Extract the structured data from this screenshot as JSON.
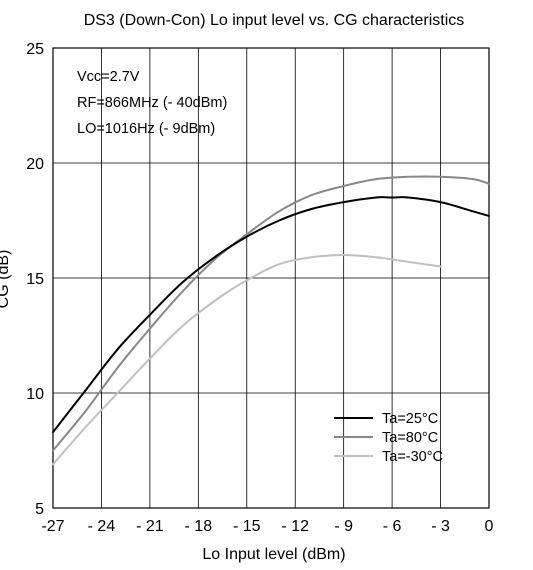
{
  "chart_data": {
    "type": "line",
    "title": "DS3 (Down-Con) Lo input level vs. CG characteristics",
    "xlabel": "Lo Input level  (dBm)",
    "ylabel": "CG (dB)",
    "xlim": [
      -27,
      0
    ],
    "ylim": [
      5,
      25
    ],
    "x_ticks": [
      -27,
      -24,
      -21,
      -18,
      -15,
      -12,
      -9,
      -6,
      -3,
      0
    ],
    "x_tick_labels": [
      "-27",
      "- 24",
      "- 21",
      "- 18",
      "- 15",
      "- 12",
      "- 9",
      "- 6",
      "- 3",
      "0"
    ],
    "y_ticks": [
      5,
      10,
      15,
      20,
      25
    ],
    "y_tick_labels": [
      "5",
      "10",
      "15",
      "20",
      "25"
    ],
    "grid": true,
    "legend_position": "bottom-right",
    "annotations": [
      "Vcc=2.7V",
      "RF=866MHz (- 40dBm)",
      "LO=1016Hz (- 9dBm)"
    ],
    "series": [
      {
        "name": "Ta=25°C",
        "color": "#000000",
        "x": [
          -27,
          -25,
          -23,
          -21,
          -19,
          -17,
          -15,
          -13,
          -11,
          -9,
          -7,
          -6,
          -5,
          -3,
          -1,
          0
        ],
        "y": [
          8.3,
          10.1,
          11.9,
          13.4,
          14.8,
          15.9,
          16.8,
          17.5,
          18.0,
          18.3,
          18.5,
          18.5,
          18.5,
          18.3,
          17.9,
          17.7
        ]
      },
      {
        "name": "Ta=80°C",
        "color": "#888888",
        "x": [
          -27,
          -25,
          -23,
          -21,
          -19,
          -17,
          -15,
          -13,
          -11,
          -9,
          -7,
          -5,
          -3,
          -1,
          0
        ],
        "y": [
          7.5,
          9.2,
          11.1,
          12.8,
          14.4,
          15.8,
          16.9,
          17.9,
          18.6,
          19.0,
          19.3,
          19.4,
          19.4,
          19.3,
          19.1
        ]
      },
      {
        "name": "Ta=-30°C",
        "color": "#c0c0c0",
        "x": [
          -27,
          -25,
          -23,
          -21,
          -19,
          -17,
          -15,
          -13,
          -11,
          -9,
          -7,
          -5,
          -3
        ],
        "y": [
          6.9,
          8.5,
          10.0,
          11.5,
          12.9,
          14.0,
          14.9,
          15.6,
          15.9,
          16.0,
          15.9,
          15.7,
          15.5
        ]
      }
    ]
  }
}
